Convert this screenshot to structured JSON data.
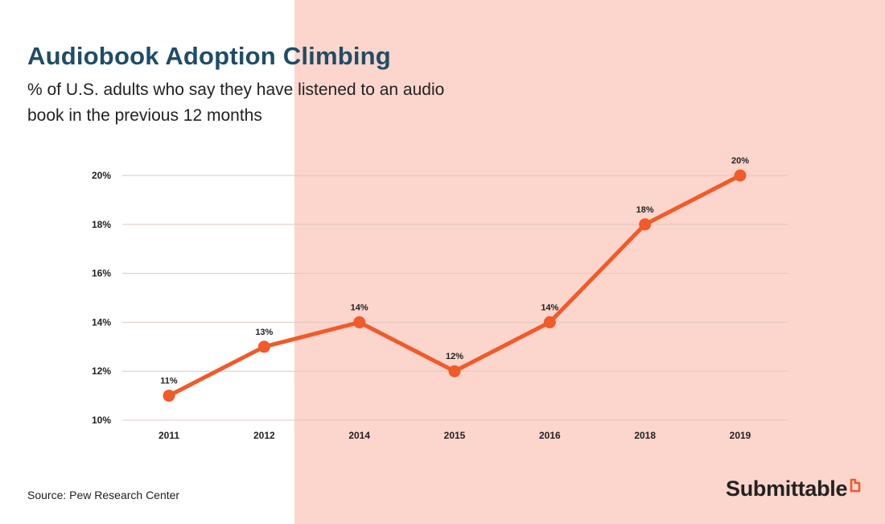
{
  "header": {
    "title": "Audiobook Adoption Climbing",
    "subtitle": "% of U.S. adults who say they have listened to an audio book in the previous 12 months"
  },
  "footer": {
    "source": "Source: Pew Research Center",
    "brand": "Submittable"
  },
  "colors": {
    "accent": "#f15a29",
    "background_panel": "#fcd5cc",
    "title": "#1f4d66",
    "grid": "#e0c8c2"
  },
  "chart_data": {
    "type": "line",
    "title": "Audiobook Adoption Climbing",
    "subtitle": "% of U.S. adults who say they have listened to an audio book in the previous 12 months",
    "categories": [
      "2011",
      "2012",
      "2014",
      "2015",
      "2016",
      "2018",
      "2019"
    ],
    "series": [
      {
        "values": [
          11,
          13,
          14,
          12,
          14,
          18,
          20
        ],
        "data_labels": [
          "11%",
          "13%",
          "14%",
          "12%",
          "14%",
          "18%",
          "20%"
        ]
      }
    ],
    "y_ticks": [
      "10%",
      "12%",
      "14%",
      "16%",
      "18%",
      "20%"
    ],
    "y_tick_values": [
      10,
      12,
      14,
      16,
      18,
      20
    ],
    "ylim": [
      10,
      20
    ],
    "grid": true,
    "legend": "none"
  }
}
